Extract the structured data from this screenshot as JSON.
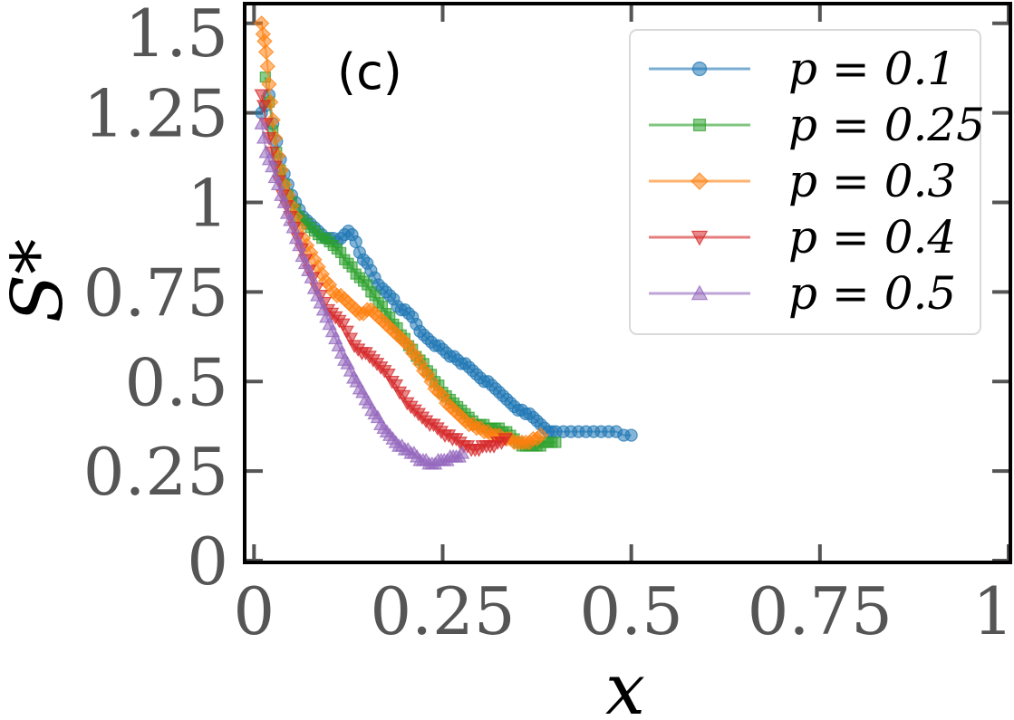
{
  "chart_data": {
    "type": "line",
    "panel_label": "(c)",
    "xlabel": "x",
    "ylabel": "S*",
    "xlim": [
      -0.01,
      1.0
    ],
    "ylim": [
      0,
      1.55
    ],
    "xticks": [
      0,
      0.25,
      0.5,
      0.75,
      1
    ],
    "xtick_labels": [
      "0",
      "0.25",
      "0.5",
      "0.75",
      "1"
    ],
    "yticks": [
      0,
      0.25,
      0.5,
      0.75,
      1,
      1.25,
      1.5
    ],
    "ytick_labels": [
      "0",
      "0.25",
      "0.5",
      "0.75",
      "1",
      "1.25",
      "1.5"
    ],
    "grid": false,
    "legend_position": "top-right",
    "series": [
      {
        "name": "p = 0.1",
        "marker": "circle",
        "color": "#1f77b4",
        "x": [
          0.01,
          0.015,
          0.02,
          0.025,
          0.03,
          0.035,
          0.04,
          0.045,
          0.05,
          0.055,
          0.06,
          0.065,
          0.07,
          0.075,
          0.08,
          0.085,
          0.09,
          0.095,
          0.1,
          0.105,
          0.11,
          0.115,
          0.12,
          0.125,
          0.13,
          0.135,
          0.14,
          0.145,
          0.15,
          0.155,
          0.16,
          0.165,
          0.17,
          0.175,
          0.18,
          0.185,
          0.19,
          0.195,
          0.2,
          0.205,
          0.21,
          0.215,
          0.22,
          0.225,
          0.23,
          0.235,
          0.24,
          0.245,
          0.25,
          0.255,
          0.26,
          0.265,
          0.27,
          0.275,
          0.28,
          0.285,
          0.29,
          0.295,
          0.3,
          0.305,
          0.31,
          0.315,
          0.32,
          0.325,
          0.33,
          0.335,
          0.34,
          0.345,
          0.35,
          0.355,
          0.36,
          0.365,
          0.37,
          0.375,
          0.38,
          0.385,
          0.39,
          0.395,
          0.4,
          0.41,
          0.42,
          0.43,
          0.44,
          0.45,
          0.46,
          0.47,
          0.48,
          0.49,
          0.5
        ],
        "y": [
          1.25,
          1.27,
          1.3,
          1.22,
          1.17,
          1.12,
          1.08,
          1.05,
          1.02,
          1.0,
          0.98,
          0.96,
          0.95,
          0.94,
          0.93,
          0.92,
          0.91,
          0.9,
          0.9,
          0.9,
          0.89,
          0.9,
          0.91,
          0.92,
          0.91,
          0.89,
          0.86,
          0.84,
          0.83,
          0.81,
          0.79,
          0.77,
          0.76,
          0.75,
          0.74,
          0.73,
          0.71,
          0.7,
          0.7,
          0.69,
          0.68,
          0.66,
          0.64,
          0.63,
          0.62,
          0.61,
          0.6,
          0.6,
          0.59,
          0.58,
          0.57,
          0.57,
          0.56,
          0.55,
          0.55,
          0.54,
          0.53,
          0.52,
          0.51,
          0.5,
          0.5,
          0.49,
          0.48,
          0.47,
          0.46,
          0.45,
          0.44,
          0.43,
          0.42,
          0.42,
          0.41,
          0.41,
          0.4,
          0.39,
          0.38,
          0.37,
          0.36,
          0.36,
          0.36,
          0.36,
          0.36,
          0.36,
          0.36,
          0.36,
          0.36,
          0.36,
          0.36,
          0.35,
          0.35
        ]
      },
      {
        "name": "p = 0.25",
        "marker": "square",
        "color": "#2ca02c",
        "x": [
          0.015,
          0.02,
          0.025,
          0.03,
          0.035,
          0.04,
          0.045,
          0.05,
          0.055,
          0.06,
          0.065,
          0.07,
          0.075,
          0.08,
          0.085,
          0.09,
          0.095,
          0.1,
          0.105,
          0.11,
          0.115,
          0.12,
          0.125,
          0.13,
          0.135,
          0.14,
          0.145,
          0.15,
          0.155,
          0.16,
          0.165,
          0.17,
          0.175,
          0.18,
          0.185,
          0.19,
          0.195,
          0.2,
          0.205,
          0.21,
          0.215,
          0.22,
          0.225,
          0.23,
          0.235,
          0.24,
          0.245,
          0.25,
          0.255,
          0.26,
          0.265,
          0.27,
          0.275,
          0.28,
          0.285,
          0.29,
          0.295,
          0.3,
          0.305,
          0.31,
          0.315,
          0.32,
          0.325,
          0.33,
          0.335,
          0.34,
          0.345,
          0.35,
          0.355,
          0.36,
          0.365,
          0.37,
          0.375,
          0.38,
          0.385,
          0.39,
          0.395,
          0.4
        ],
        "y": [
          1.35,
          1.28,
          1.2,
          1.14,
          1.09,
          1.05,
          1.02,
          1.0,
          0.98,
          0.96,
          0.95,
          0.94,
          0.93,
          0.92,
          0.91,
          0.9,
          0.9,
          0.89,
          0.88,
          0.87,
          0.86,
          0.84,
          0.83,
          0.82,
          0.8,
          0.79,
          0.78,
          0.77,
          0.75,
          0.74,
          0.72,
          0.71,
          0.69,
          0.68,
          0.66,
          0.65,
          0.63,
          0.62,
          0.6,
          0.59,
          0.57,
          0.56,
          0.55,
          0.53,
          0.52,
          0.5,
          0.49,
          0.47,
          0.46,
          0.45,
          0.44,
          0.43,
          0.42,
          0.41,
          0.4,
          0.39,
          0.38,
          0.38,
          0.38,
          0.37,
          0.37,
          0.37,
          0.37,
          0.36,
          0.36,
          0.35,
          0.34,
          0.33,
          0.32,
          0.32,
          0.32,
          0.32,
          0.32,
          0.32,
          0.33,
          0.33,
          0.33,
          0.33
        ]
      },
      {
        "name": "p = 0.3",
        "marker": "diamond",
        "color": "#ff7f0e",
        "x": [
          0.01,
          0.012,
          0.014,
          0.016,
          0.018,
          0.02,
          0.022,
          0.025,
          0.028,
          0.032,
          0.036,
          0.04,
          0.045,
          0.05,
          0.055,
          0.06,
          0.065,
          0.07,
          0.075,
          0.08,
          0.085,
          0.09,
          0.095,
          0.1,
          0.105,
          0.11,
          0.115,
          0.12,
          0.125,
          0.13,
          0.135,
          0.14,
          0.145,
          0.15,
          0.155,
          0.16,
          0.165,
          0.17,
          0.175,
          0.18,
          0.185,
          0.19,
          0.195,
          0.2,
          0.205,
          0.21,
          0.215,
          0.22,
          0.225,
          0.23,
          0.235,
          0.24,
          0.245,
          0.25,
          0.255,
          0.26,
          0.265,
          0.27,
          0.275,
          0.28,
          0.285,
          0.29,
          0.295,
          0.3,
          0.305,
          0.31,
          0.315,
          0.32,
          0.325,
          0.33,
          0.335,
          0.34,
          0.345,
          0.35,
          0.355,
          0.36,
          0.365,
          0.37,
          0.375,
          0.38
        ],
        "y": [
          1.5,
          1.47,
          1.45,
          1.42,
          1.38,
          1.33,
          1.28,
          1.23,
          1.18,
          1.13,
          1.09,
          1.05,
          1.02,
          0.99,
          0.96,
          0.93,
          0.9,
          0.88,
          0.86,
          0.84,
          0.82,
          0.8,
          0.78,
          0.77,
          0.75,
          0.74,
          0.74,
          0.73,
          0.72,
          0.71,
          0.7,
          0.69,
          0.69,
          0.7,
          0.7,
          0.69,
          0.68,
          0.67,
          0.66,
          0.65,
          0.64,
          0.63,
          0.62,
          0.61,
          0.6,
          0.58,
          0.57,
          0.55,
          0.53,
          0.52,
          0.5,
          0.48,
          0.47,
          0.46,
          0.44,
          0.43,
          0.42,
          0.41,
          0.4,
          0.39,
          0.38,
          0.38,
          0.37,
          0.37,
          0.36,
          0.36,
          0.35,
          0.35,
          0.35,
          0.34,
          0.34,
          0.34,
          0.33,
          0.33,
          0.33,
          0.33,
          0.33,
          0.34,
          0.34,
          0.35
        ]
      },
      {
        "name": "p = 0.4",
        "marker": "triangle-down",
        "color": "#d62728",
        "x": [
          0.01,
          0.013,
          0.016,
          0.02,
          0.024,
          0.028,
          0.033,
          0.038,
          0.043,
          0.048,
          0.053,
          0.058,
          0.063,
          0.068,
          0.073,
          0.078,
          0.083,
          0.088,
          0.093,
          0.098,
          0.103,
          0.108,
          0.113,
          0.118,
          0.123,
          0.128,
          0.133,
          0.138,
          0.143,
          0.148,
          0.153,
          0.158,
          0.163,
          0.168,
          0.173,
          0.178,
          0.183,
          0.188,
          0.193,
          0.198,
          0.203,
          0.208,
          0.213,
          0.218,
          0.223,
          0.228,
          0.233,
          0.238,
          0.243,
          0.248,
          0.253,
          0.258,
          0.263,
          0.268,
          0.273,
          0.278,
          0.283,
          0.288,
          0.293,
          0.298,
          0.303,
          0.308,
          0.313,
          0.318,
          0.323,
          0.328,
          0.333
        ],
        "y": [
          1.3,
          1.27,
          1.22,
          1.18,
          1.14,
          1.1,
          1.06,
          1.02,
          0.99,
          0.96,
          0.93,
          0.9,
          0.87,
          0.84,
          0.81,
          0.79,
          0.76,
          0.74,
          0.72,
          0.7,
          0.69,
          0.68,
          0.67,
          0.66,
          0.64,
          0.62,
          0.6,
          0.59,
          0.58,
          0.58,
          0.57,
          0.56,
          0.55,
          0.54,
          0.53,
          0.52,
          0.5,
          0.49,
          0.47,
          0.46,
          0.44,
          0.43,
          0.42,
          0.41,
          0.4,
          0.39,
          0.38,
          0.38,
          0.37,
          0.36,
          0.35,
          0.35,
          0.34,
          0.34,
          0.33,
          0.32,
          0.32,
          0.31,
          0.31,
          0.31,
          0.32,
          0.32,
          0.32,
          0.32,
          0.33,
          0.33,
          0.34
        ]
      },
      {
        "name": "p = 0.5",
        "marker": "triangle-up",
        "color": "#9467bd",
        "x": [
          0.01,
          0.013,
          0.016,
          0.02,
          0.024,
          0.028,
          0.032,
          0.036,
          0.04,
          0.044,
          0.048,
          0.052,
          0.056,
          0.06,
          0.064,
          0.068,
          0.072,
          0.076,
          0.08,
          0.084,
          0.088,
          0.092,
          0.096,
          0.1,
          0.104,
          0.108,
          0.112,
          0.116,
          0.12,
          0.124,
          0.128,
          0.132,
          0.136,
          0.14,
          0.144,
          0.148,
          0.152,
          0.156,
          0.16,
          0.164,
          0.168,
          0.172,
          0.176,
          0.18,
          0.184,
          0.188,
          0.192,
          0.196,
          0.2,
          0.204,
          0.208,
          0.212,
          0.216,
          0.22,
          0.224,
          0.228,
          0.232,
          0.236,
          0.24,
          0.244,
          0.248,
          0.252,
          0.256,
          0.26,
          0.264,
          0.268,
          0.272,
          0.276
        ],
        "y": [
          1.22,
          1.18,
          1.14,
          1.12,
          1.1,
          1.07,
          1.05,
          1.02,
          1.0,
          0.97,
          0.95,
          0.93,
          0.9,
          0.88,
          0.85,
          0.83,
          0.81,
          0.79,
          0.76,
          0.74,
          0.72,
          0.7,
          0.68,
          0.66,
          0.64,
          0.62,
          0.6,
          0.58,
          0.56,
          0.55,
          0.53,
          0.51,
          0.5,
          0.48,
          0.47,
          0.45,
          0.44,
          0.42,
          0.41,
          0.4,
          0.38,
          0.37,
          0.36,
          0.35,
          0.34,
          0.33,
          0.32,
          0.32,
          0.31,
          0.31,
          0.3,
          0.3,
          0.29,
          0.28,
          0.28,
          0.28,
          0.27,
          0.27,
          0.27,
          0.28,
          0.28,
          0.28,
          0.28,
          0.29,
          0.29,
          0.29,
          0.29,
          0.3
        ]
      }
    ]
  }
}
